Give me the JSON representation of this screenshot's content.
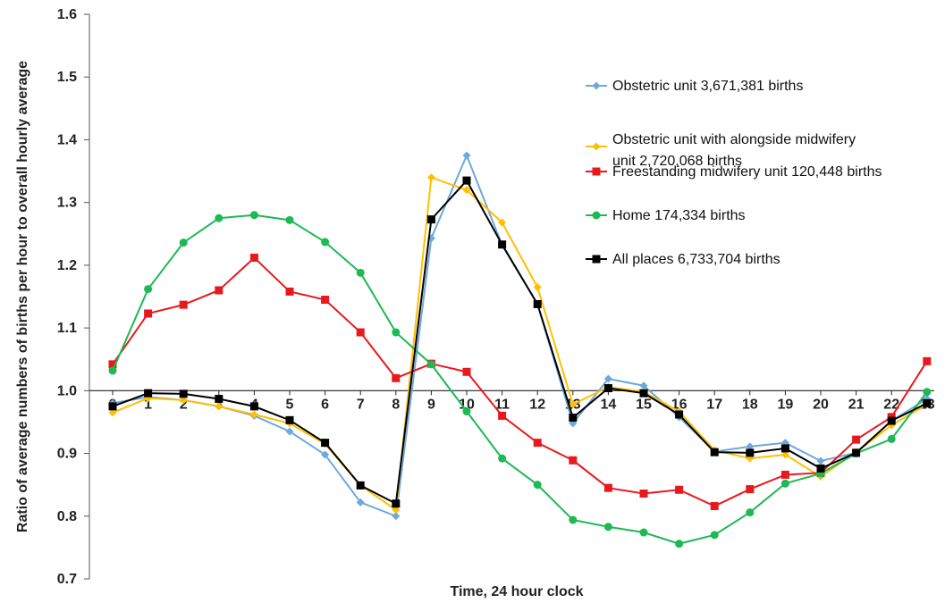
{
  "chart_data": {
    "type": "line",
    "title": "",
    "xlabel": "Time, 24 hour clock",
    "ylabel": "Ratio of average numbers of births per hour to overall hourly average",
    "ylim": [
      0.7,
      1.6
    ],
    "yticks": [
      "0.7",
      "0.8",
      "0.9",
      "1.0",
      "1.1",
      "1.2",
      "1.3",
      "1.4",
      "1.5",
      "1.6"
    ],
    "x": [
      "0",
      "1",
      "2",
      "3",
      "4",
      "5",
      "6",
      "7",
      "8",
      "9",
      "10",
      "11",
      "12",
      "13",
      "14",
      "15",
      "16",
      "17",
      "18",
      "19",
      "20",
      "21",
      "22",
      "23"
    ],
    "x_axis_crosses_at": 1.0,
    "grid": false,
    "legend_position": "right",
    "series": [
      {
        "name": "Obstetric unit 3,671,381 births",
        "color": "#6fa8dc",
        "marker": "diamond",
        "values": [
          0.98,
          0.99,
          0.985,
          0.975,
          0.96,
          0.935,
          0.898,
          0.822,
          0.8,
          1.243,
          1.375,
          1.232,
          1.138,
          0.948,
          1.019,
          1.008,
          0.958,
          0.903,
          0.911,
          0.917,
          0.888,
          0.901,
          0.952,
          0.987
        ]
      },
      {
        "name": "Obstetric unit with alongside midwifery unit  2,720,068 births",
        "color": "#ffc000",
        "marker": "diamond",
        "values": [
          0.965,
          0.988,
          0.985,
          0.975,
          0.962,
          0.948,
          0.915,
          0.849,
          0.81,
          1.34,
          1.32,
          1.268,
          1.165,
          0.978,
          1.006,
          0.998,
          0.967,
          0.905,
          0.892,
          0.898,
          0.863,
          0.902,
          0.945,
          0.978
        ]
      },
      {
        "name": "Freestanding midwifery unit  120,448 births",
        "color": "#e8191c",
        "marker": "square",
        "values": [
          1.042,
          1.123,
          1.137,
          1.16,
          1.212,
          1.158,
          1.145,
          1.093,
          1.02,
          1.043,
          1.03,
          0.96,
          0.917,
          0.889,
          0.845,
          0.836,
          0.842,
          0.816,
          0.843,
          0.866,
          0.869,
          0.922,
          0.958,
          1.047
        ]
      },
      {
        "name": "Home  174,334 births",
        "color": "#1db954",
        "marker": "circle",
        "values": [
          1.032,
          1.162,
          1.236,
          1.275,
          1.28,
          1.272,
          1.237,
          1.188,
          1.093,
          1.042,
          0.967,
          0.892,
          0.85,
          0.794,
          0.783,
          0.774,
          0.756,
          0.77,
          0.806,
          0.852,
          0.868,
          0.9,
          0.923,
          0.998
        ]
      },
      {
        "name": "All places  6,733,704 births",
        "color": "#000000",
        "marker": "square",
        "values": [
          0.975,
          0.996,
          0.995,
          0.987,
          0.975,
          0.953,
          0.917,
          0.849,
          0.82,
          1.273,
          1.335,
          1.233,
          1.138,
          0.957,
          1.004,
          0.996,
          0.962,
          0.902,
          0.901,
          0.908,
          0.876,
          0.901,
          0.952,
          0.98
        ]
      }
    ]
  }
}
